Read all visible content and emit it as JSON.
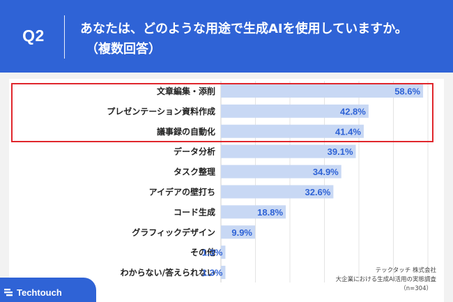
{
  "header": {
    "question_label": "Q2",
    "question_line1": "あなたは、どのような用途で生成AIを使用していますか。",
    "question_line2": "（複数回答）"
  },
  "colors": {
    "header_bg": "#2f63d6",
    "bar": "#c8d8f4",
    "label": "#2f63d6",
    "highlight": "#e0262c"
  },
  "chart_data": {
    "type": "bar",
    "orientation": "horizontal",
    "categories": [
      "文章編集・添削",
      "プレゼンテーション資料作成",
      "議事録の自動化",
      "データ分析",
      "タスク整理",
      "アイデアの壁打ち",
      "コード生成",
      "グラフィックデザイン",
      "その他",
      "わからない/答えられない"
    ],
    "values": [
      58.6,
      42.8,
      41.4,
      39.1,
      34.9,
      32.6,
      18.8,
      9.9,
      1.3,
      1.3
    ],
    "value_labels": [
      "58.6%",
      "42.8%",
      "41.4%",
      "39.1%",
      "34.9%",
      "32.6%",
      "18.8%",
      "9.9%",
      "1.3%",
      "1.3%"
    ],
    "xlim": [
      0,
      60
    ],
    "grid": true,
    "highlighted_categories": [
      "文章編集・添削",
      "プレゼンテーション資料作成",
      "議事録の自動化"
    ]
  },
  "source_note": {
    "line1": "テックタッチ 株式会社",
    "line2": "大企業における生成AI活用の実態調査",
    "line3": "（n=304）"
  },
  "brand": {
    "name": "Techtouch",
    "icon": "techtouch-logo-icon"
  }
}
